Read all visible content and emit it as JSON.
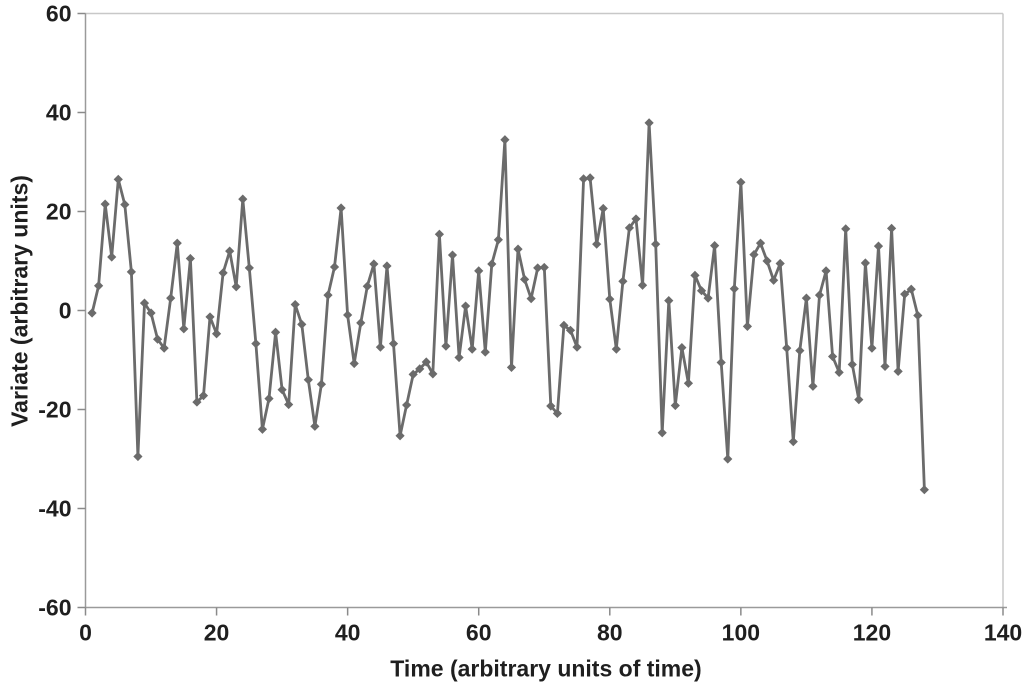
{
  "chart_data": {
    "type": "line",
    "title": "",
    "xlabel": "Time (arbitrary units of time)",
    "ylabel": "Variate (arbitrary units)",
    "xlim": [
      0,
      140
    ],
    "ylim": [
      -60,
      60
    ],
    "x_ticks": [
      0,
      20,
      40,
      60,
      80,
      100,
      120,
      140
    ],
    "y_ticks": [
      60,
      40,
      20,
      0,
      -20,
      -40,
      -60
    ],
    "grid": false,
    "legend_position": "none",
    "marker": "diamond",
    "x_rule": {
      "start": 1,
      "step": 1,
      "count": 128
    },
    "series": [
      {
        "name": "variate",
        "values": [
          -0.5,
          5,
          21.5,
          10.8,
          26.5,
          21.4,
          7.8,
          -29.5,
          1.5,
          -0.5,
          -5.8,
          -7.6,
          2.5,
          13.6,
          -3.7,
          10.5,
          -18.5,
          -17.2,
          -1.3,
          -4.7,
          7.6,
          12,
          4.8,
          22.5,
          8.6,
          -6.7,
          -24,
          -17.8,
          -4.4,
          -16,
          -19,
          1.2,
          -2.8,
          -14,
          -23.4,
          -14.9,
          3.1,
          8.8,
          20.7,
          -0.9,
          -10.7,
          -2.5,
          4.9,
          9.4,
          -7.4,
          9,
          -6.7,
          -25.3,
          -19.1,
          -12.9,
          -11.8,
          -10.4,
          -12.8,
          15.4,
          -7.2,
          11.2,
          -9.5,
          0.9,
          -7.8,
          8,
          -8.4,
          9.4,
          14.3,
          34.5,
          -11.5,
          12.4,
          6.3,
          2.4,
          8.6,
          8.7,
          -19.3,
          -20.8,
          -3,
          -4,
          -7.4,
          26.6,
          26.8,
          13.4,
          20.6,
          2.3,
          -7.8,
          5.9,
          16.7,
          18.5,
          5.1,
          37.9,
          13.4,
          -24.7,
          2,
          -19.2,
          -7.5,
          -14.7,
          7.1,
          4,
          2.5,
          13.1,
          -10.5,
          -30,
          4.4,
          25.9,
          -3.2,
          11.3,
          13.6,
          10,
          6.1,
          9.5,
          -7.6,
          -26.5,
          -8.1,
          2.5,
          -15.3,
          3.1,
          8,
          -9.3,
          -12.5,
          16.5,
          -10.9,
          -18,
          9.6,
          -7.6,
          13,
          -11.3,
          16.6,
          -12.3,
          3.3,
          4.3,
          -1,
          -36.2
        ]
      }
    ]
  },
  "colors": {
    "series_line": "#6b6b6b",
    "marker_fill": "#6b6b6b",
    "axis_line": "#9a9a9a",
    "frame_border": "#c8c8c8",
    "tick_mark": "#8a8a8a",
    "text": "#1f1f1f",
    "background": "#ffffff"
  }
}
